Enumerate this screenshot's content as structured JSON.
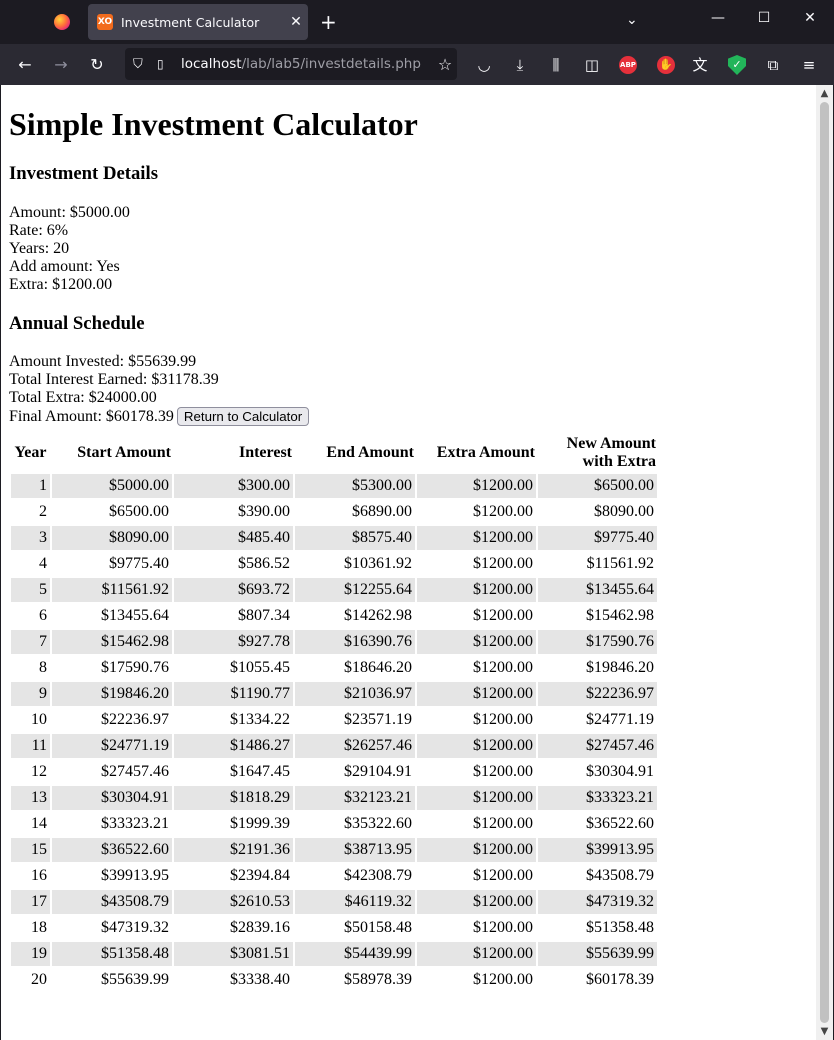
{
  "browser": {
    "tab_title": "Investment Calculator",
    "tab_icon_text": "XO",
    "url_host": "localhost",
    "url_path": "/lab/lab5/investdetails.php"
  },
  "page": {
    "title": "Simple Investment Calculator",
    "details_heading": "Investment Details",
    "details": [
      "Amount: $5000.00",
      "Rate: 6%",
      "Years: 20",
      "Add amount: Yes",
      "Extra: $1200.00"
    ],
    "schedule_heading": "Annual Schedule",
    "summary": {
      "amount_invested": "Amount Invested: $55639.99",
      "total_interest": "Total Interest Earned: $31178.39",
      "total_extra": "Total Extra: $24000.00",
      "final_amount": "Final Amount: $60178.39"
    },
    "return_button": "Return to Calculator"
  },
  "table": {
    "headers": {
      "year": "Year",
      "start": "Start Amount",
      "interest": "Interest",
      "end": "End Amount",
      "extra": "Extra Amount",
      "new_line1": "New Amount",
      "new_line2": "with Extra"
    },
    "rows": [
      [
        "1",
        "$5000.00",
        "$300.00",
        "$5300.00",
        "$1200.00",
        "$6500.00"
      ],
      [
        "2",
        "$6500.00",
        "$390.00",
        "$6890.00",
        "$1200.00",
        "$8090.00"
      ],
      [
        "3",
        "$8090.00",
        "$485.40",
        "$8575.40",
        "$1200.00",
        "$9775.40"
      ],
      [
        "4",
        "$9775.40",
        "$586.52",
        "$10361.92",
        "$1200.00",
        "$11561.92"
      ],
      [
        "5",
        "$11561.92",
        "$693.72",
        "$12255.64",
        "$1200.00",
        "$13455.64"
      ],
      [
        "6",
        "$13455.64",
        "$807.34",
        "$14262.98",
        "$1200.00",
        "$15462.98"
      ],
      [
        "7",
        "$15462.98",
        "$927.78",
        "$16390.76",
        "$1200.00",
        "$17590.76"
      ],
      [
        "8",
        "$17590.76",
        "$1055.45",
        "$18646.20",
        "$1200.00",
        "$19846.20"
      ],
      [
        "9",
        "$19846.20",
        "$1190.77",
        "$21036.97",
        "$1200.00",
        "$22236.97"
      ],
      [
        "10",
        "$22236.97",
        "$1334.22",
        "$23571.19",
        "$1200.00",
        "$24771.19"
      ],
      [
        "11",
        "$24771.19",
        "$1486.27",
        "$26257.46",
        "$1200.00",
        "$27457.46"
      ],
      [
        "12",
        "$27457.46",
        "$1647.45",
        "$29104.91",
        "$1200.00",
        "$30304.91"
      ],
      [
        "13",
        "$30304.91",
        "$1818.29",
        "$32123.21",
        "$1200.00",
        "$33323.21"
      ],
      [
        "14",
        "$33323.21",
        "$1999.39",
        "$35322.60",
        "$1200.00",
        "$36522.60"
      ],
      [
        "15",
        "$36522.60",
        "$2191.36",
        "$38713.95",
        "$1200.00",
        "$39913.95"
      ],
      [
        "16",
        "$39913.95",
        "$2394.84",
        "$42308.79",
        "$1200.00",
        "$43508.79"
      ],
      [
        "17",
        "$43508.79",
        "$2610.53",
        "$46119.32",
        "$1200.00",
        "$47319.32"
      ],
      [
        "18",
        "$47319.32",
        "$2839.16",
        "$50158.48",
        "$1200.00",
        "$51358.48"
      ],
      [
        "19",
        "$51358.48",
        "$3081.51",
        "$54439.99",
        "$1200.00",
        "$55639.99"
      ],
      [
        "20",
        "$55639.99",
        "$3338.40",
        "$58978.39",
        "$1200.00",
        "$60178.39"
      ]
    ]
  },
  "icons": {
    "back": "←",
    "forward": "→",
    "reload": "↻",
    "shield": "⛉",
    "page": "▯",
    "star": "☆",
    "pocket": "◡",
    "download": "⤓",
    "library": "⫼",
    "sidebar": "◫",
    "abp": "ABP",
    "ublock": "✋",
    "translate": "文",
    "vpn": "✓",
    "extensions": "⧉",
    "menu": "≡",
    "close": "✕",
    "new_tab": "+",
    "tab_list": "⌄",
    "minimize": "—",
    "maximize": "☐",
    "win_close": "✕",
    "scroll_up": "▲",
    "scroll_down": "▼"
  },
  "colors": {
    "tab_bg": "#1c1b22",
    "active_tab": "#42414d",
    "toolbar": "#2b2a33",
    "row_stripe": "#e5e5e5"
  }
}
